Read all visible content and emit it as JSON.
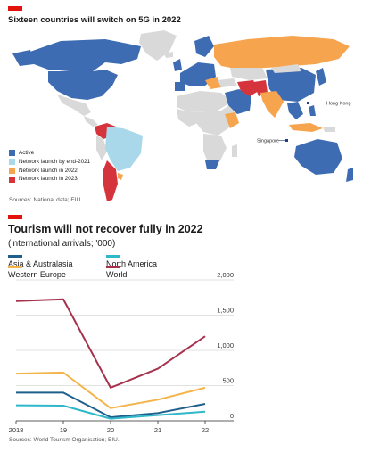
{
  "map_section": {
    "title": "Sixteen countries will switch on 5G in 2022",
    "legend": [
      {
        "label": "Active",
        "color": "#3d6cb3"
      },
      {
        "label": "Network launch by end-2021",
        "color": "#a8d8ea"
      },
      {
        "label": "Network launch in 2022",
        "color": "#f6a44d"
      },
      {
        "label": "Network launch in 2023",
        "color": "#d5343c"
      }
    ],
    "no_data_color": "#d9d9d9",
    "labels": {
      "hong_kong": "Hong Kong",
      "singapore": "Singapore"
    },
    "source": "Sources: National data; EIU."
  },
  "chart_data": {
    "type": "line",
    "title": "Tourism will not recover fully in 2022",
    "subtitle": "(international arrivals; '000)",
    "x": [
      "2018",
      "19",
      "20",
      "21",
      "22"
    ],
    "ylim": [
      0,
      2000
    ],
    "yticks": [
      "0",
      "500",
      "1,000",
      "1,500",
      "2,000"
    ],
    "grid": true,
    "legend_position": "top-left",
    "series": [
      {
        "name": "Asia & Australasia",
        "color": "#1f5f8b",
        "values": [
          400,
          400,
          50,
          110,
          240
        ]
      },
      {
        "name": "North America",
        "color": "#2eb8c9",
        "values": [
          220,
          215,
          30,
          80,
          130
        ]
      },
      {
        "name": "Western Europe",
        "color": "#f3b44a",
        "values": [
          670,
          685,
          180,
          300,
          470
        ]
      },
      {
        "name": "World",
        "color": "#a6324e",
        "values": [
          1700,
          1725,
          470,
          740,
          1200
        ]
      }
    ],
    "source": "Sources: World Tourism Organisation; EIU."
  }
}
